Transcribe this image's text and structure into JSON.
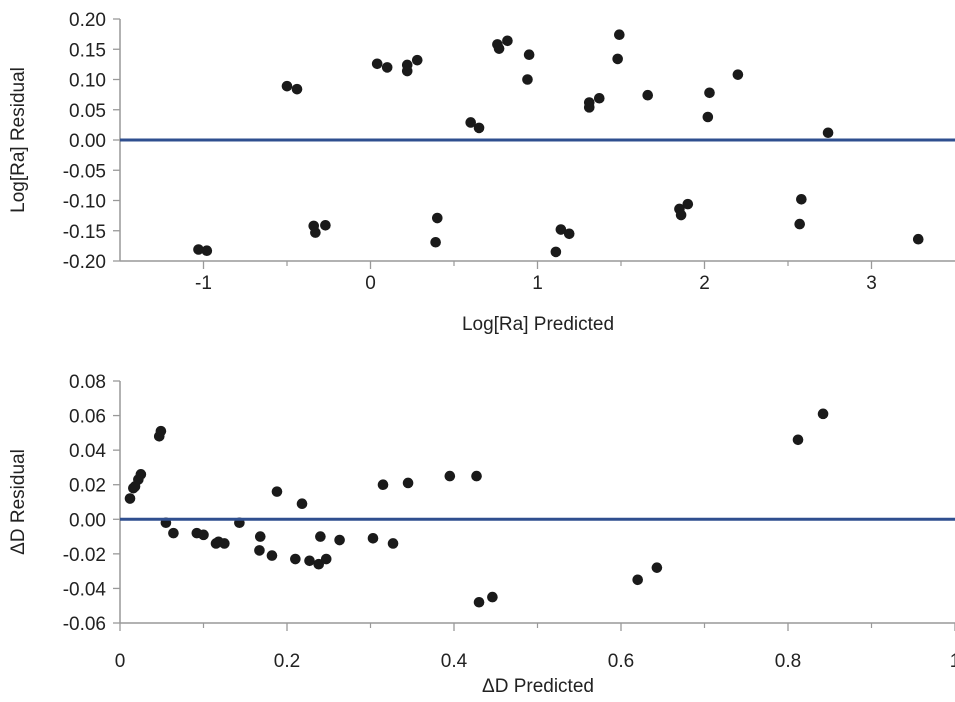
{
  "chart_data": [
    {
      "type": "scatter",
      "title": "",
      "xlabel": "Log[Ra] Predicted",
      "ylabel": "Log[Ra] Residual",
      "xlim": [
        -1.5,
        3.5
      ],
      "ylim": [
        -0.2,
        0.2
      ],
      "xticks": [
        -1,
        0,
        1,
        2,
        3
      ],
      "xtick_labels": [
        "-1",
        "0",
        "1",
        "2",
        "3"
      ],
      "yticks": [
        0.2,
        0.15,
        0.1,
        0.05,
        0.0,
        -0.05,
        -0.1,
        -0.15,
        -0.2
      ],
      "ytick_labels": [
        "0.20",
        "0.15",
        "0.10",
        "0.05",
        "0.00",
        "-0.05",
        "-0.10",
        "-0.15",
        "-0.20"
      ],
      "reference_line_y": 0,
      "grid": false,
      "colors": {
        "points": "#1a1a1a",
        "reference_line": "#2f4f8f",
        "axis": "#999999"
      },
      "points": [
        {
          "x": -1.03,
          "y": -0.181
        },
        {
          "x": -0.98,
          "y": -0.183
        },
        {
          "x": -0.5,
          "y": 0.089
        },
        {
          "x": -0.44,
          "y": 0.084
        },
        {
          "x": -0.34,
          "y": -0.142
        },
        {
          "x": -0.33,
          "y": -0.153
        },
        {
          "x": -0.27,
          "y": -0.141
        },
        {
          "x": 0.04,
          "y": 0.126
        },
        {
          "x": 0.1,
          "y": 0.12
        },
        {
          "x": 0.22,
          "y": 0.124
        },
        {
          "x": 0.22,
          "y": 0.114
        },
        {
          "x": 0.28,
          "y": 0.132
        },
        {
          "x": 0.39,
          "y": -0.169
        },
        {
          "x": 0.4,
          "y": -0.129
        },
        {
          "x": 0.6,
          "y": 0.029
        },
        {
          "x": 0.65,
          "y": 0.02
        },
        {
          "x": 0.76,
          "y": 0.158
        },
        {
          "x": 0.77,
          "y": 0.151
        },
        {
          "x": 0.82,
          "y": 0.164
        },
        {
          "x": 0.94,
          "y": 0.1
        },
        {
          "x": 0.95,
          "y": 0.141
        },
        {
          "x": 1.11,
          "y": -0.185
        },
        {
          "x": 1.14,
          "y": -0.148
        },
        {
          "x": 1.19,
          "y": -0.155
        },
        {
          "x": 1.31,
          "y": 0.062
        },
        {
          "x": 1.31,
          "y": 0.054
        },
        {
          "x": 1.37,
          "y": 0.069
        },
        {
          "x": 1.48,
          "y": 0.134
        },
        {
          "x": 1.49,
          "y": 0.174
        },
        {
          "x": 1.66,
          "y": 0.074
        },
        {
          "x": 1.85,
          "y": -0.114
        },
        {
          "x": 1.86,
          "y": -0.124
        },
        {
          "x": 1.9,
          "y": -0.106
        },
        {
          "x": 2.02,
          "y": 0.038
        },
        {
          "x": 2.03,
          "y": 0.078
        },
        {
          "x": 2.2,
          "y": 0.108
        },
        {
          "x": 2.57,
          "y": -0.139
        },
        {
          "x": 2.58,
          "y": -0.098
        },
        {
          "x": 2.74,
          "y": 0.012
        },
        {
          "x": 3.28,
          "y": -0.164
        }
      ]
    },
    {
      "type": "scatter",
      "title": "",
      "xlabel": "ΔD Predicted",
      "ylabel": "ΔD Residual",
      "xlim": [
        0,
        1
      ],
      "ylim": [
        -0.06,
        0.08
      ],
      "xticks": [
        0,
        0.2,
        0.4,
        0.6,
        0.8,
        1
      ],
      "xtick_labels": [
        "0",
        "0.2",
        "0.4",
        "0.6",
        "0.8",
        "1"
      ],
      "yticks": [
        0.08,
        0.06,
        0.04,
        0.02,
        0.0,
        -0.02,
        -0.04,
        -0.06
      ],
      "ytick_labels": [
        "0.08",
        "0.06",
        "0.04",
        "0.02",
        "0.00",
        "-0.02",
        "-0.04",
        "-0.06"
      ],
      "reference_line_y": 0,
      "grid": false,
      "colors": {
        "points": "#1a1a1a",
        "reference_line": "#2f4f8f",
        "axis": "#999999"
      },
      "points": [
        {
          "x": 0.012,
          "y": 0.012
        },
        {
          "x": 0.016,
          "y": 0.018
        },
        {
          "x": 0.018,
          "y": 0.019
        },
        {
          "x": 0.022,
          "y": 0.023
        },
        {
          "x": 0.025,
          "y": 0.026
        },
        {
          "x": 0.047,
          "y": 0.048
        },
        {
          "x": 0.049,
          "y": 0.051
        },
        {
          "x": 0.055,
          "y": -0.002
        },
        {
          "x": 0.064,
          "y": -0.008
        },
        {
          "x": 0.092,
          "y": -0.008
        },
        {
          "x": 0.1,
          "y": -0.009
        },
        {
          "x": 0.115,
          "y": -0.014
        },
        {
          "x": 0.118,
          "y": -0.013
        },
        {
          "x": 0.125,
          "y": -0.014
        },
        {
          "x": 0.143,
          "y": -0.002
        },
        {
          "x": 0.167,
          "y": -0.018
        },
        {
          "x": 0.168,
          "y": -0.01
        },
        {
          "x": 0.182,
          "y": -0.021
        },
        {
          "x": 0.188,
          "y": 0.016
        },
        {
          "x": 0.21,
          "y": -0.023
        },
        {
          "x": 0.218,
          "y": 0.009
        },
        {
          "x": 0.227,
          "y": -0.024
        },
        {
          "x": 0.238,
          "y": -0.026
        },
        {
          "x": 0.24,
          "y": -0.01
        },
        {
          "x": 0.247,
          "y": -0.023
        },
        {
          "x": 0.263,
          "y": -0.012
        },
        {
          "x": 0.303,
          "y": -0.011
        },
        {
          "x": 0.315,
          "y": 0.02
        },
        {
          "x": 0.327,
          "y": -0.014
        },
        {
          "x": 0.345,
          "y": 0.021
        },
        {
          "x": 0.395,
          "y": 0.025
        },
        {
          "x": 0.427,
          "y": 0.025
        },
        {
          "x": 0.43,
          "y": -0.048
        },
        {
          "x": 0.446,
          "y": -0.045
        },
        {
          "x": 0.62,
          "y": -0.035
        },
        {
          "x": 0.643,
          "y": -0.028
        },
        {
          "x": 0.812,
          "y": 0.046
        },
        {
          "x": 0.842,
          "y": 0.061
        }
      ]
    }
  ]
}
